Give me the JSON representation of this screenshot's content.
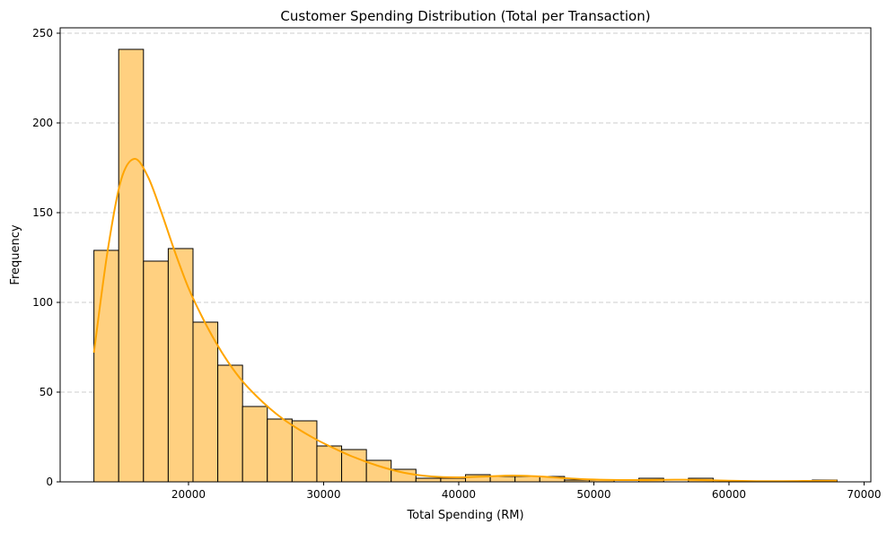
{
  "chart_data": {
    "type": "bar",
    "title": "Customer Spending Distribution (Total per Transaction)",
    "xlabel": "Total Spending (RM)",
    "ylabel": "Frequency",
    "xlim": [
      10500,
      70500
    ],
    "ylim": [
      0,
      253
    ],
    "xticks": [
      20000,
      30000,
      40000,
      50000,
      60000,
      70000
    ],
    "yticks": [
      0,
      50,
      100,
      150,
      200,
      250
    ],
    "grid": "y-dashed",
    "bins": {
      "edges": [
        13000,
        14833,
        16667,
        18500,
        20333,
        22167,
        24000,
        25833,
        27667,
        29500,
        31333,
        33167,
        35000,
        36833,
        38667,
        40500,
        42333,
        44167,
        46000,
        47833,
        49667,
        51500,
        53333,
        55167,
        57000,
        58833,
        60667,
        62500,
        64333,
        66167,
        68000
      ],
      "counts": [
        129,
        241,
        123,
        130,
        89,
        65,
        42,
        35,
        34,
        20,
        18,
        12,
        7,
        2,
        2,
        4,
        3,
        3,
        3,
        1,
        1,
        0,
        2,
        0,
        2,
        0,
        0,
        0,
        0,
        1
      ]
    },
    "kde": {
      "x": [
        13000,
        14000,
        15000,
        16000,
        17000,
        18000,
        19000,
        20000,
        21000,
        22000,
        23000,
        24000,
        25000,
        26000,
        27000,
        28000,
        29000,
        30000,
        32000,
        34000,
        36000,
        38000,
        40000,
        42000,
        44000,
        46000,
        48000,
        50000,
        52000,
        54000,
        56000,
        58000,
        60000,
        62000,
        64000,
        66000,
        68000
      ],
      "y": [
        72,
        128,
        168,
        180,
        170,
        150,
        128,
        108,
        92,
        78,
        66,
        56,
        48,
        41,
        35,
        30,
        25.5,
        21.5,
        14.5,
        9,
        5,
        3,
        2.5,
        3,
        3.5,
        3,
        2,
        1.3,
        1,
        1,
        1.2,
        1,
        0.6,
        0.4,
        0.4,
        0.5,
        0.6
      ]
    },
    "colors": {
      "bar_fill": "#ffd080",
      "bar_edge": "#000000",
      "kde_line": "#ffa500",
      "grid": "#cccccc"
    }
  }
}
